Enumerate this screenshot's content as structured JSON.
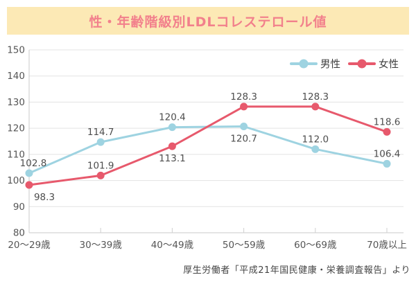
{
  "chart_data": {
    "type": "line",
    "title": "性・年齢階級別LDLコレステロール値",
    "title_bg_color": "#FCE9B5",
    "title_text_color": "#F2808C",
    "categories": [
      "20〜29歳",
      "30〜39歳",
      "40〜49歳",
      "50〜59歳",
      "60〜69歳",
      "70歳以上"
    ],
    "series": [
      {
        "id": "male",
        "name": "男性",
        "color": "#9ED3E1",
        "values": [
          102.8,
          114.7,
          120.4,
          120.7,
          112.0,
          106.4
        ],
        "label_pos": [
          "above",
          "above",
          "above",
          "below",
          "above",
          "above"
        ],
        "label_dx": [
          6,
          0,
          0,
          0,
          0,
          0
        ]
      },
      {
        "id": "female",
        "name": "女性",
        "color": "#E7596C",
        "values": [
          98.3,
          101.9,
          113.1,
          128.3,
          128.3,
          118.6
        ],
        "label_pos": [
          "below",
          "above",
          "below",
          "above",
          "above",
          "above"
        ],
        "label_dx": [
          22,
          0,
          0,
          0,
          0,
          0
        ]
      }
    ],
    "ylim": [
      80,
      150
    ],
    "ytick_step": 10,
    "yticks": [
      80,
      90,
      100,
      110,
      120,
      130,
      140,
      150
    ],
    "grid": true,
    "legend_position": "top-right",
    "value_decimals": 1
  },
  "footer": {
    "source_text": "厚生労働者「平成21年国民健康・栄養調査報告」より"
  }
}
